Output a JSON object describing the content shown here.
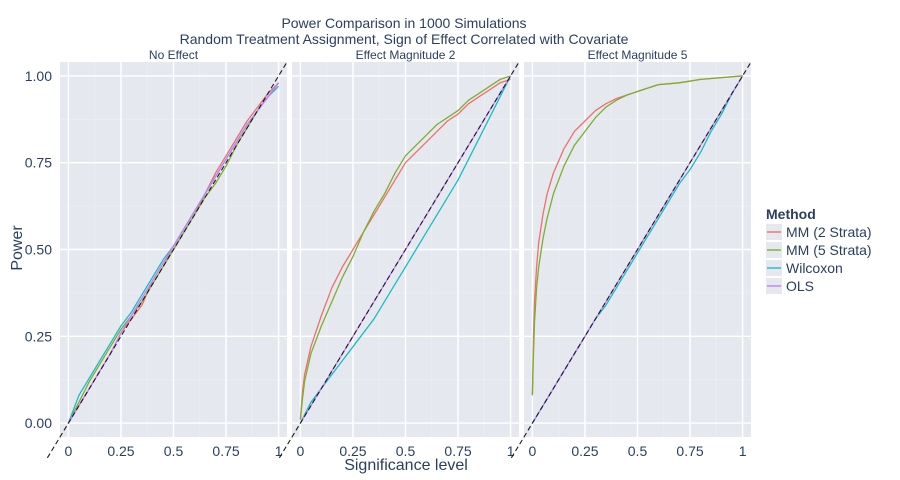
{
  "chart_data": {
    "type": "line",
    "title": "Power Comparison in 1000 Simulations",
    "subtitle": "Random Treatment Assignment, Sign of Effect Correlated with Covariate",
    "xlabel": "Significance level",
    "ylabel": "Power",
    "xlim": [
      -0.04,
      1.04
    ],
    "ylim": [
      -0.04,
      1.04
    ],
    "x_ticks": [
      0,
      0.25,
      0.5,
      0.75,
      1
    ],
    "x_tick_labels": [
      "0",
      "0.25",
      "0.5",
      "0.75",
      "1"
    ],
    "y_ticks": [
      0,
      0.25,
      0.5,
      0.75,
      1
    ],
    "y_tick_labels": [
      "0.00",
      "0.25",
      "0.50",
      "0.75",
      "1.00"
    ],
    "grid": true,
    "reference_line": {
      "style": "dashed",
      "color": "#1b1b1b",
      "slope": 1,
      "intercept": 0
    },
    "legend": {
      "title": "Method",
      "position": "right",
      "entries": [
        {
          "name": "MM (2 Strata)",
          "color": "#ef6f6a"
        },
        {
          "name": "MM (5 Strata)",
          "color": "#7fae2e"
        },
        {
          "name": "Wilcoxon",
          "color": "#19bcc4"
        },
        {
          "name": "OLS",
          "color": "#c77cff"
        }
      ]
    },
    "panels": [
      {
        "title": "No Effect",
        "series": [
          {
            "name": "MM (2 Strata)",
            "color": "#ef6f6a",
            "x": [
              0,
              0.05,
              0.1,
              0.15,
              0.2,
              0.25,
              0.3,
              0.35,
              0.4,
              0.45,
              0.5,
              0.55,
              0.6,
              0.65,
              0.7,
              0.75,
              0.8,
              0.85,
              0.9,
              0.95,
              1
            ],
            "y": [
              0,
              0.05,
              0.1,
              0.15,
              0.2,
              0.26,
              0.3,
              0.34,
              0.41,
              0.46,
              0.5,
              0.55,
              0.6,
              0.66,
              0.72,
              0.77,
              0.82,
              0.87,
              0.91,
              0.95,
              0.98
            ]
          },
          {
            "name": "MM (5 Strata)",
            "color": "#7fae2e",
            "x": [
              0,
              0.05,
              0.1,
              0.15,
              0.2,
              0.25,
              0.3,
              0.35,
              0.4,
              0.45,
              0.5,
              0.55,
              0.6,
              0.65,
              0.7,
              0.75,
              0.8,
              0.85,
              0.9,
              0.95,
              1
            ],
            "y": [
              0,
              0.06,
              0.12,
              0.17,
              0.22,
              0.27,
              0.31,
              0.35,
              0.4,
              0.45,
              0.5,
              0.55,
              0.6,
              0.65,
              0.69,
              0.74,
              0.8,
              0.85,
              0.9,
              0.94,
              0.98
            ]
          },
          {
            "name": "Wilcoxon",
            "color": "#19bcc4",
            "x": [
              0,
              0.05,
              0.1,
              0.15,
              0.2,
              0.25,
              0.3,
              0.35,
              0.4,
              0.45,
              0.5,
              0.55,
              0.6,
              0.65,
              0.7,
              0.75,
              0.8,
              0.85,
              0.9,
              0.95,
              1
            ],
            "y": [
              0,
              0.08,
              0.13,
              0.18,
              0.23,
              0.28,
              0.32,
              0.37,
              0.42,
              0.47,
              0.51,
              0.56,
              0.61,
              0.66,
              0.71,
              0.76,
              0.81,
              0.86,
              0.9,
              0.94,
              0.97
            ]
          },
          {
            "name": "OLS",
            "color": "#c77cff",
            "x": [
              0,
              0.05,
              0.1,
              0.15,
              0.2,
              0.25,
              0.3,
              0.35,
              0.4,
              0.45,
              0.5,
              0.55,
              0.6,
              0.65,
              0.7,
              0.75,
              0.8,
              0.85,
              0.9,
              0.95,
              1
            ],
            "y": [
              0,
              0.05,
              0.1,
              0.15,
              0.2,
              0.26,
              0.31,
              0.36,
              0.41,
              0.46,
              0.51,
              0.56,
              0.61,
              0.66,
              0.71,
              0.76,
              0.81,
              0.86,
              0.9,
              0.94,
              0.98
            ]
          }
        ]
      },
      {
        "title": "Effect Magnitude 2",
        "series": [
          {
            "name": "MM (2 Strata)",
            "color": "#ef6f6a",
            "x": [
              0,
              0.01,
              0.02,
              0.05,
              0.1,
              0.15,
              0.2,
              0.25,
              0.3,
              0.35,
              0.4,
              0.45,
              0.5,
              0.55,
              0.6,
              0.65,
              0.7,
              0.75,
              0.8,
              0.85,
              0.9,
              0.95,
              1
            ],
            "y": [
              0.01,
              0.09,
              0.14,
              0.22,
              0.31,
              0.39,
              0.45,
              0.5,
              0.55,
              0.6,
              0.65,
              0.7,
              0.75,
              0.78,
              0.81,
              0.84,
              0.87,
              0.89,
              0.92,
              0.94,
              0.96,
              0.98,
              0.99
            ]
          },
          {
            "name": "MM (5 Strata)",
            "color": "#7fae2e",
            "x": [
              0,
              0.01,
              0.02,
              0.05,
              0.1,
              0.15,
              0.2,
              0.25,
              0.3,
              0.35,
              0.4,
              0.45,
              0.5,
              0.55,
              0.6,
              0.65,
              0.7,
              0.75,
              0.8,
              0.85,
              0.9,
              0.95,
              1
            ],
            "y": [
              0.01,
              0.07,
              0.12,
              0.2,
              0.28,
              0.35,
              0.42,
              0.48,
              0.55,
              0.61,
              0.66,
              0.72,
              0.77,
              0.8,
              0.83,
              0.86,
              0.88,
              0.9,
              0.93,
              0.95,
              0.97,
              0.99,
              1
            ]
          },
          {
            "name": "Wilcoxon",
            "color": "#19bcc4",
            "x": [
              0,
              0.05,
              0.1,
              0.15,
              0.2,
              0.25,
              0.3,
              0.35,
              0.4,
              0.45,
              0.5,
              0.55,
              0.6,
              0.65,
              0.7,
              0.75,
              0.8,
              0.85,
              0.9,
              0.95,
              1
            ],
            "y": [
              0,
              0.06,
              0.1,
              0.14,
              0.18,
              0.22,
              0.26,
              0.3,
              0.35,
              0.4,
              0.45,
              0.5,
              0.55,
              0.6,
              0.65,
              0.7,
              0.76,
              0.82,
              0.88,
              0.94,
              1
            ]
          },
          {
            "name": "OLS",
            "color": "#c77cff",
            "x": [
              0,
              0.05,
              0.1,
              0.15,
              0.2,
              0.25,
              0.3,
              0.35,
              0.4,
              0.45,
              0.5,
              0.55,
              0.6,
              0.65,
              0.7,
              0.75,
              0.8,
              0.85,
              0.9,
              0.95,
              1
            ],
            "y": [
              0,
              0.05,
              0.1,
              0.15,
              0.2,
              0.25,
              0.3,
              0.35,
              0.4,
              0.45,
              0.5,
              0.55,
              0.6,
              0.65,
              0.7,
              0.75,
              0.8,
              0.85,
              0.9,
              0.95,
              1
            ]
          }
        ]
      },
      {
        "title": "Effect Magnitude 5",
        "series": [
          {
            "name": "MM (2 Strata)",
            "color": "#ef6f6a",
            "x": [
              0,
              0.005,
              0.01,
              0.02,
              0.03,
              0.05,
              0.07,
              0.1,
              0.15,
              0.2,
              0.25,
              0.3,
              0.35,
              0.4,
              0.45,
              0.5,
              0.55,
              0.6,
              0.7,
              0.8,
              0.9,
              1
            ],
            "y": [
              0.08,
              0.25,
              0.35,
              0.45,
              0.52,
              0.6,
              0.66,
              0.72,
              0.79,
              0.84,
              0.87,
              0.9,
              0.92,
              0.935,
              0.945,
              0.955,
              0.965,
              0.975,
              0.98,
              0.99,
              0.995,
              1
            ]
          },
          {
            "name": "MM (5 Strata)",
            "color": "#7fae2e",
            "x": [
              0,
              0.005,
              0.01,
              0.02,
              0.03,
              0.05,
              0.07,
              0.1,
              0.15,
              0.2,
              0.25,
              0.3,
              0.35,
              0.4,
              0.45,
              0.5,
              0.55,
              0.6,
              0.7,
              0.8,
              0.9,
              1
            ],
            "y": [
              0.08,
              0.2,
              0.29,
              0.39,
              0.45,
              0.53,
              0.59,
              0.66,
              0.74,
              0.8,
              0.84,
              0.88,
              0.91,
              0.93,
              0.945,
              0.955,
              0.965,
              0.975,
              0.98,
              0.99,
              0.995,
              1
            ]
          },
          {
            "name": "Wilcoxon",
            "color": "#19bcc4",
            "x": [
              0,
              0.05,
              0.1,
              0.15,
              0.2,
              0.25,
              0.3,
              0.35,
              0.4,
              0.45,
              0.5,
              0.55,
              0.6,
              0.65,
              0.7,
              0.75,
              0.8,
              0.85,
              0.9,
              0.95,
              1
            ],
            "y": [
              0,
              0.05,
              0.1,
              0.15,
              0.2,
              0.25,
              0.3,
              0.34,
              0.39,
              0.44,
              0.49,
              0.54,
              0.59,
              0.64,
              0.69,
              0.73,
              0.78,
              0.84,
              0.89,
              0.95,
              1
            ]
          },
          {
            "name": "OLS",
            "color": "#c77cff",
            "x": [
              0,
              0.05,
              0.1,
              0.15,
              0.2,
              0.25,
              0.3,
              0.35,
              0.4,
              0.45,
              0.5,
              0.55,
              0.6,
              0.65,
              0.7,
              0.75,
              0.8,
              0.85,
              0.9,
              0.95,
              1
            ],
            "y": [
              0,
              0.05,
              0.1,
              0.15,
              0.2,
              0.25,
              0.3,
              0.35,
              0.4,
              0.45,
              0.5,
              0.55,
              0.6,
              0.65,
              0.7,
              0.75,
              0.8,
              0.85,
              0.9,
              0.95,
              1
            ]
          }
        ]
      }
    ]
  }
}
